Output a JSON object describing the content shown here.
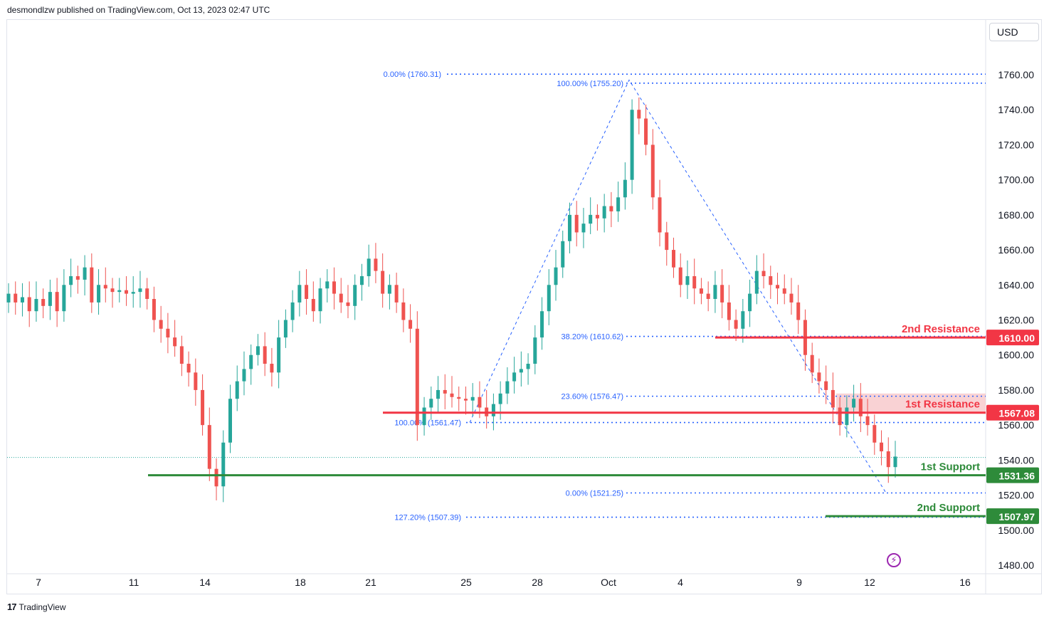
{
  "header": {
    "published_by": "desmondlzw published on TradingView.com, Oct 13, 2023 02:47 UTC"
  },
  "currency_label": "USD",
  "footer": {
    "logo": "17",
    "brand": "TradingView"
  },
  "colors": {
    "up": "#26a69a",
    "down": "#ef5350",
    "fib": "#2962ff",
    "resistance": "#f23645",
    "support": "#2e8b3a",
    "resistance_zone": "#f8c7c9"
  },
  "chart_data": {
    "type": "candlestick",
    "ylim": [
      1470,
      1775
    ],
    "y_ticks": [
      "1760.00",
      "1740.00",
      "1720.00",
      "1700.00",
      "1680.00",
      "1660.00",
      "1640.00",
      "1620.00",
      "1600.00",
      "1580.00",
      "1560.00",
      "1540.00",
      "1520.00",
      "1500.00",
      "1480.00"
    ],
    "x_labels": [
      "7",
      "11",
      "14",
      "18",
      "21",
      "25",
      "28",
      "Oct",
      "4",
      "9",
      "12",
      "16"
    ],
    "levels": [
      {
        "name": "2nd Resistance",
        "value": 1610.0,
        "label": "1610.00",
        "kind": "resistance"
      },
      {
        "name": "1st Resistance",
        "value": 1567.08,
        "label": "1567.08",
        "kind": "resistance"
      },
      {
        "name": "1st Support",
        "value": 1531.36,
        "label": "1531.36",
        "kind": "support"
      },
      {
        "name": "2nd Support",
        "value": 1507.97,
        "label": "1507.97",
        "kind": "support"
      }
    ],
    "fib_labels": [
      {
        "text": "0.00% (1760.31)",
        "value": 1760.31
      },
      {
        "text": "100.00% (1755.20)",
        "value": 1755.2
      },
      {
        "text": "38.20% (1610.62)",
        "value": 1610.62
      },
      {
        "text": "23.60% (1576.47)",
        "value": 1576.47
      },
      {
        "text": "100.00% (1561.47)",
        "value": 1561.47
      },
      {
        "text": "0.00% (1521.25)",
        "value": 1521.25
      },
      {
        "text": "127.20% (1507.39)",
        "value": 1507.39
      }
    ],
    "current_price": 1541.5,
    "resistance_zone": [
      1567.08,
      1578
    ],
    "close": [
      1635,
      1630,
      1633,
      1625,
      1632,
      1628,
      1636,
      1625,
      1640,
      1645,
      1643,
      1650,
      1630,
      1640,
      1638,
      1636,
      1637,
      1635,
      1636,
      1638,
      1632,
      1620,
      1615,
      1610,
      1605,
      1595,
      1590,
      1580,
      1560,
      1535,
      1525,
      1550,
      1575,
      1585,
      1592,
      1600,
      1605,
      1595,
      1590,
      1610,
      1620,
      1630,
      1640,
      1632,
      1625,
      1638,
      1642,
      1635,
      1630,
      1628,
      1640,
      1645,
      1655,
      1648,
      1635,
      1640,
      1630,
      1620,
      1615,
      1560,
      1570,
      1575,
      1580,
      1578,
      1576,
      1575,
      1574,
      1576,
      1570,
      1565,
      1572,
      1578,
      1585,
      1590,
      1592,
      1595,
      1610,
      1625,
      1640,
      1650,
      1665,
      1680,
      1670,
      1675,
      1680,
      1678,
      1685,
      1682,
      1690,
      1700,
      1740,
      1735,
      1720,
      1690,
      1670,
      1660,
      1650,
      1640,
      1645,
      1638,
      1635,
      1632,
      1640,
      1630,
      1620,
      1615,
      1625,
      1635,
      1648,
      1645,
      1640,
      1638,
      1635,
      1630,
      1620,
      1600,
      1590,
      1585,
      1580,
      1570,
      1560,
      1570,
      1575,
      1565,
      1560,
      1550,
      1545,
      1536,
      1542
    ],
    "open": [
      1630,
      1635,
      1630,
      1633,
      1625,
      1632,
      1628,
      1636,
      1625,
      1640,
      1645,
      1643,
      1650,
      1630,
      1640,
      1638,
      1636,
      1637,
      1635,
      1636,
      1638,
      1632,
      1620,
      1615,
      1610,
      1605,
      1595,
      1590,
      1580,
      1560,
      1535,
      1525,
      1550,
      1575,
      1585,
      1592,
      1600,
      1605,
      1595,
      1590,
      1610,
      1620,
      1630,
      1640,
      1632,
      1625,
      1638,
      1642,
      1635,
      1630,
      1628,
      1640,
      1645,
      1655,
      1648,
      1635,
      1640,
      1630,
      1620,
      1615,
      1560,
      1570,
      1575,
      1580,
      1578,
      1576,
      1575,
      1574,
      1576,
      1570,
      1565,
      1572,
      1578,
      1585,
      1590,
      1592,
      1595,
      1610,
      1625,
      1640,
      1650,
      1665,
      1680,
      1670,
      1675,
      1680,
      1678,
      1685,
      1682,
      1690,
      1700,
      1740,
      1735,
      1720,
      1690,
      1670,
      1660,
      1650,
      1640,
      1645,
      1638,
      1635,
      1632,
      1640,
      1630,
      1620,
      1615,
      1625,
      1635,
      1648,
      1645,
      1640,
      1638,
      1635,
      1630,
      1620,
      1600,
      1590,
      1585,
      1580,
      1570,
      1560,
      1570,
      1575,
      1565,
      1560,
      1550,
      1545,
      1536
    ]
  }
}
